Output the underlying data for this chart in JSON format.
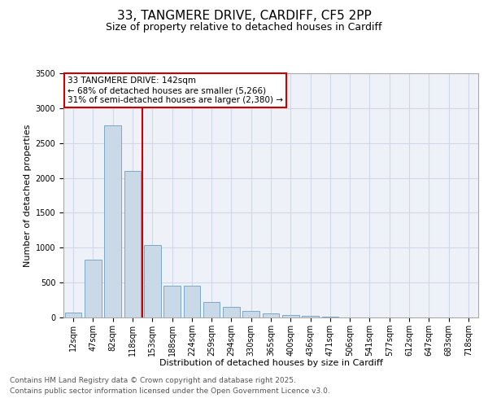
{
  "title_line1": "33, TANGMERE DRIVE, CARDIFF, CF5 2PP",
  "title_line2": "Size of property relative to detached houses in Cardiff",
  "xlabel": "Distribution of detached houses by size in Cardiff",
  "ylabel": "Number of detached properties",
  "categories": [
    "12sqm",
    "47sqm",
    "82sqm",
    "118sqm",
    "153sqm",
    "188sqm",
    "224sqm",
    "259sqm",
    "294sqm",
    "330sqm",
    "365sqm",
    "400sqm",
    "436sqm",
    "471sqm",
    "506sqm",
    "541sqm",
    "577sqm",
    "612sqm",
    "647sqm",
    "683sqm",
    "718sqm"
  ],
  "values": [
    75,
    830,
    2750,
    2100,
    1040,
    450,
    450,
    220,
    150,
    90,
    55,
    30,
    18,
    10,
    5,
    3,
    2,
    1,
    1,
    0,
    1
  ],
  "bar_color": "#c9d9e8",
  "bar_edge_color": "#7da8c8",
  "vline_color": "#cc0000",
  "annotation_text": "33 TANGMERE DRIVE: 142sqm\n← 68% of detached houses are smaller (5,266)\n31% of semi-detached houses are larger (2,380) →",
  "annotation_box_color": "#ffffff",
  "annotation_box_edge": "#cc0000",
  "ylim": [
    0,
    3500
  ],
  "yticks": [
    0,
    500,
    1000,
    1500,
    2000,
    2500,
    3000,
    3500
  ],
  "grid_color": "#d0d8e8",
  "background_color": "#eef2f8",
  "footer_line1": "Contains HM Land Registry data © Crown copyright and database right 2025.",
  "footer_line2": "Contains public sector information licensed under the Open Government Licence v3.0.",
  "title_fontsize": 11,
  "subtitle_fontsize": 9,
  "axis_label_fontsize": 8,
  "tick_fontsize": 7,
  "annotation_fontsize": 7.5,
  "footer_fontsize": 6.5
}
